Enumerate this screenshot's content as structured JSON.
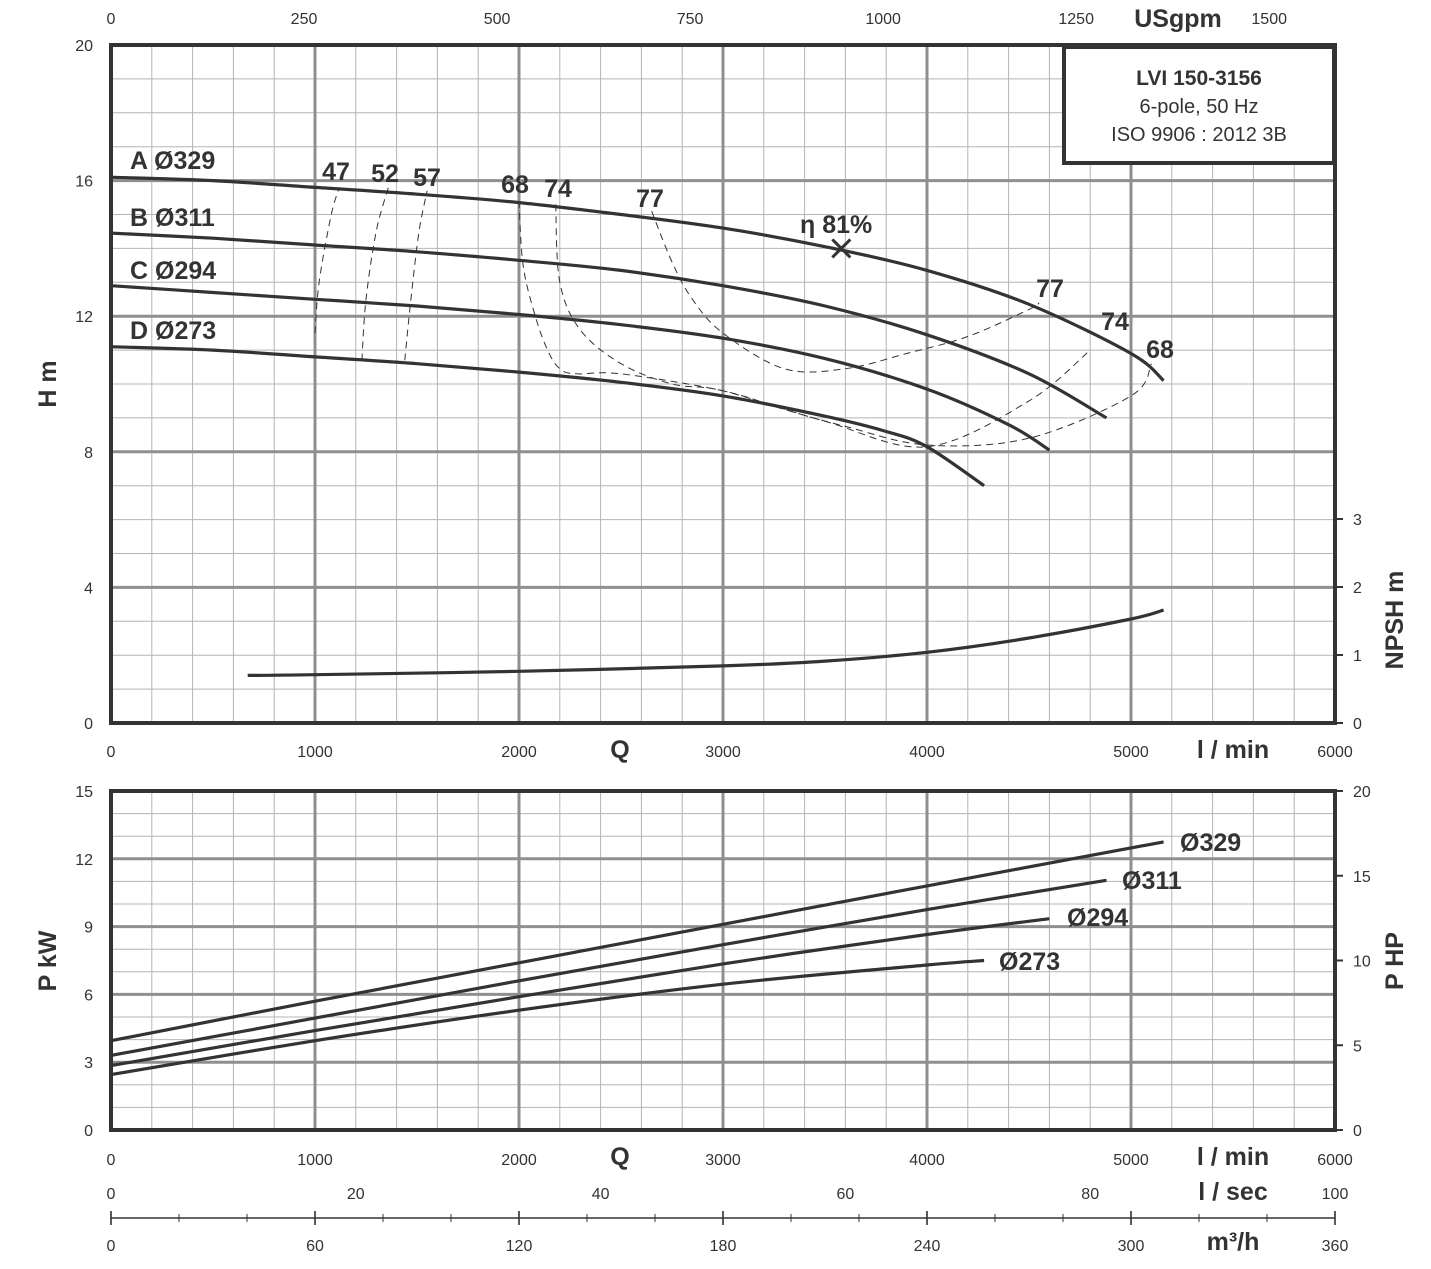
{
  "info_box": {
    "model": "LVI 150-3156",
    "line2": "6-pole, 50 Hz",
    "line3": "ISO 9906 : 2012 3B"
  },
  "chart_data": [
    {
      "type": "line",
      "panel": "head",
      "xlabel": "Q",
      "x_unit": "l / min",
      "ylabel": "H m",
      "xlim": [
        0,
        6000
      ],
      "ylim": [
        0,
        20
      ],
      "x_ticks": [
        0,
        1000,
        2000,
        3000,
        4000,
        5000,
        6000
      ],
      "y_ticks": [
        0,
        4,
        8,
        12,
        16,
        20
      ],
      "top_axis": {
        "label": "USgpm",
        "ticks": [
          "0",
          "250",
          "500",
          "750",
          "1000",
          "1250",
          "1500"
        ]
      },
      "right_axis": {
        "label": "NPSH m",
        "ticks": [
          "0",
          "1",
          "2",
          "3"
        ],
        "range": [
          0,
          3
        ]
      },
      "grid": true,
      "series": [
        {
          "name": "A Ø329",
          "x": [
            0,
            500,
            1000,
            1500,
            2000,
            2500,
            3000,
            3500,
            4000,
            4500,
            5000,
            5160
          ],
          "y": [
            16.1,
            16.0,
            15.8,
            15.6,
            15.35,
            15.0,
            14.6,
            14.05,
            13.35,
            12.35,
            10.9,
            10.1
          ]
        },
        {
          "name": "B Ø311",
          "x": [
            0,
            500,
            1000,
            1500,
            2000,
            2500,
            3000,
            3500,
            4000,
            4500,
            4880
          ],
          "y": [
            14.45,
            14.3,
            14.1,
            13.9,
            13.65,
            13.35,
            12.9,
            12.3,
            11.45,
            10.3,
            9.0
          ]
        },
        {
          "name": "C Ø294",
          "x": [
            0,
            500,
            1000,
            1500,
            2000,
            2500,
            3000,
            3500,
            4000,
            4400,
            4600
          ],
          "y": [
            12.9,
            12.7,
            12.5,
            12.3,
            12.05,
            11.75,
            11.35,
            10.75,
            9.85,
            8.8,
            8.05
          ]
        },
        {
          "name": "D Ø273",
          "x": [
            0,
            500,
            1000,
            1500,
            2000,
            2500,
            3000,
            3500,
            3800,
            4000,
            4280
          ],
          "y": [
            11.1,
            11.0,
            10.8,
            10.6,
            10.35,
            10.05,
            9.65,
            9.05,
            8.6,
            8.15,
            7.0
          ]
        },
        {
          "name": "NPSH",
          "axis": "right",
          "x": [
            670,
            1000,
            2000,
            3000,
            3500,
            4000,
            4500,
            5000,
            5160
          ],
          "y": [
            0.7,
            0.71,
            0.76,
            0.84,
            0.91,
            1.04,
            1.25,
            1.53,
            1.66
          ]
        }
      ],
      "efficiency_contours": [
        {
          "label": "47",
          "x": [
            1000,
            1020,
            1080,
            1120
          ],
          "y": [
            11.5,
            13.0,
            15.0,
            15.8
          ]
        },
        {
          "label": "52",
          "x": [
            1230,
            1250,
            1300,
            1360
          ],
          "y": [
            10.7,
            12.5,
            14.5,
            15.8
          ]
        },
        {
          "label": "57",
          "x": [
            1440,
            1470,
            1510,
            1550
          ],
          "y": [
            10.7,
            12.5,
            14.5,
            15.7
          ]
        },
        {
          "label": "68",
          "x": [
            2000,
            2020,
            2080,
            2140,
            2200,
            2280,
            2500,
            3000,
            3300,
            3600,
            4000,
            4500,
            5000,
            5100
          ],
          "y": [
            15.4,
            13.5,
            12.0,
            11.0,
            10.45,
            10.3,
            10.3,
            9.8,
            9.25,
            8.75,
            8.2,
            8.4,
            9.65,
            10.6
          ]
        },
        {
          "label": "74",
          "x": [
            2180,
            2200,
            2300,
            2500,
            2750,
            3000,
            3500,
            4000,
            4500,
            4800
          ],
          "y": [
            15.3,
            13.0,
            11.6,
            10.6,
            10.0,
            9.8,
            8.9,
            8.15,
            9.5,
            11.0
          ]
        },
        {
          "label": "77",
          "x": [
            2650,
            2750,
            2850,
            3000,
            3300,
            3600,
            3900,
            4200,
            4500,
            4550
          ],
          "y": [
            15.1,
            13.6,
            12.5,
            11.5,
            10.45,
            10.45,
            10.9,
            11.4,
            12.2,
            12.4
          ]
        }
      ],
      "bep": {
        "label": "η 81%",
        "x": 3580,
        "y": 14.0
      },
      "end_labels": [
        "77",
        "74",
        "68"
      ]
    },
    {
      "type": "line",
      "panel": "power",
      "xlabel": "Q",
      "x_unit": "l / min",
      "ylabel": "P kW",
      "xlim": [
        0,
        6000
      ],
      "ylim": [
        0,
        15
      ],
      "x_ticks": [
        0,
        1000,
        2000,
        3000,
        4000,
        5000,
        6000
      ],
      "y_ticks": [
        0,
        3,
        6,
        9,
        12,
        15
      ],
      "right_axis": {
        "label": "P HP",
        "ticks": [
          "0",
          "5",
          "10",
          "15",
          "20"
        ],
        "range": [
          0,
          20
        ]
      },
      "grid": true,
      "series": [
        {
          "name": "Ø329",
          "x": [
            0,
            1000,
            2000,
            3000,
            4000,
            5160
          ],
          "y": [
            3.95,
            5.7,
            7.4,
            9.1,
            10.8,
            12.75
          ]
        },
        {
          "name": "Ø311",
          "x": [
            0,
            1000,
            2000,
            3000,
            4000,
            4880
          ],
          "y": [
            3.3,
            4.95,
            6.6,
            8.2,
            9.75,
            11.05
          ]
        },
        {
          "name": "Ø294",
          "x": [
            0,
            1000,
            2000,
            3000,
            4000,
            4600
          ],
          "y": [
            2.85,
            4.4,
            5.9,
            7.35,
            8.65,
            9.35
          ]
        },
        {
          "name": "Ø273",
          "x": [
            0,
            1000,
            2000,
            3000,
            4000,
            4280
          ],
          "y": [
            2.45,
            3.95,
            5.3,
            6.45,
            7.3,
            7.5
          ]
        }
      ]
    }
  ],
  "unit_scales": [
    {
      "label": "l / sec",
      "ticks": [
        "0",
        "20",
        "40",
        "60",
        "80",
        "100"
      ]
    },
    {
      "label": "m³/h",
      "ticks": [
        "0",
        "60",
        "120",
        "180",
        "240",
        "300",
        "360"
      ]
    }
  ]
}
